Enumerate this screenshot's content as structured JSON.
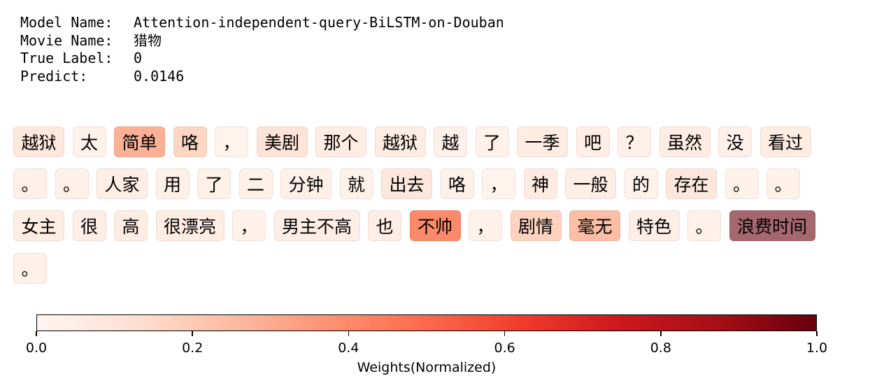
{
  "info": {
    "model_label": "Model Name:",
    "model_value": "Attention-independent-query-BiLSTM-on-Douban",
    "movie_label": "Movie Name:",
    "movie_value": "猎物",
    "true_label_label": "True Label:",
    "true_label_value": "0",
    "predict_label": "Predict:",
    "predict_value": "0.0146"
  },
  "tokens": [
    {
      "text": "越狱",
      "weight": 0.08
    },
    {
      "text": "太",
      "weight": 0.02
    },
    {
      "text": "简单",
      "weight": 0.28
    },
    {
      "text": "咯",
      "weight": 0.16
    },
    {
      "text": "，",
      "weight": 0.01
    },
    {
      "text": "美剧",
      "weight": 0.1
    },
    {
      "text": "那个",
      "weight": 0.05
    },
    {
      "text": "越狱",
      "weight": 0.05
    },
    {
      "text": "越",
      "weight": 0.03
    },
    {
      "text": "了",
      "weight": 0.02
    },
    {
      "text": "一季",
      "weight": 0.05
    },
    {
      "text": "吧",
      "weight": 0.04
    },
    {
      "text": "？",
      "weight": 0.03
    },
    {
      "text": "虽然",
      "weight": 0.05
    },
    {
      "text": "没",
      "weight": 0.03
    },
    {
      "text": "看过",
      "weight": 0.05
    },
    {
      "text": "。",
      "weight": 0.03
    },
    {
      "text": "。",
      "weight": 0.03
    },
    {
      "text": "人家",
      "weight": 0.04
    },
    {
      "text": "用",
      "weight": 0.03
    },
    {
      "text": "了",
      "weight": 0.03
    },
    {
      "text": "二",
      "weight": 0.03
    },
    {
      "text": "分钟",
      "weight": 0.03
    },
    {
      "text": "就",
      "weight": 0.02
    },
    {
      "text": "出去",
      "weight": 0.08
    },
    {
      "text": "咯",
      "weight": 0.03
    },
    {
      "text": "，",
      "weight": 0.01
    },
    {
      "text": "神",
      "weight": 0.06
    },
    {
      "text": "一般",
      "weight": 0.04
    },
    {
      "text": "的",
      "weight": 0.02
    },
    {
      "text": "存在",
      "weight": 0.08
    },
    {
      "text": "。",
      "weight": 0.02
    },
    {
      "text": "。",
      "weight": 0.02
    },
    {
      "text": "女主",
      "weight": 0.05
    },
    {
      "text": "很",
      "weight": 0.04
    },
    {
      "text": "高",
      "weight": 0.05
    },
    {
      "text": "很漂亮",
      "weight": 0.05
    },
    {
      "text": "，",
      "weight": 0.02
    },
    {
      "text": "男主不高",
      "weight": 0.04
    },
    {
      "text": "也",
      "weight": 0.04
    },
    {
      "text": "不帅",
      "weight": 0.4
    },
    {
      "text": "，",
      "weight": 0.02
    },
    {
      "text": "剧情",
      "weight": 0.17
    },
    {
      "text": "毫无",
      "weight": 0.24
    },
    {
      "text": "特色",
      "weight": 0.04
    },
    {
      "text": "。",
      "weight": 0.02
    },
    {
      "text": "浪费时间",
      "weight": 0.6
    },
    {
      "text": "。",
      "weight": 0.03
    }
  ],
  "colorbar": {
    "ticks": [
      "0.0",
      "0.2",
      "0.4",
      "0.6",
      "0.8",
      "1.0"
    ],
    "label": "Weights(Normalized)"
  },
  "colors": {
    "scale": [
      "#fff5f0",
      "#fee0d2",
      "#fcbba1",
      "#fc9272",
      "#fb6a4a",
      "#ef3b2c",
      "#cb181d",
      "#a50f15",
      "#67000d"
    ],
    "max_token_fill": "#a5686f"
  }
}
